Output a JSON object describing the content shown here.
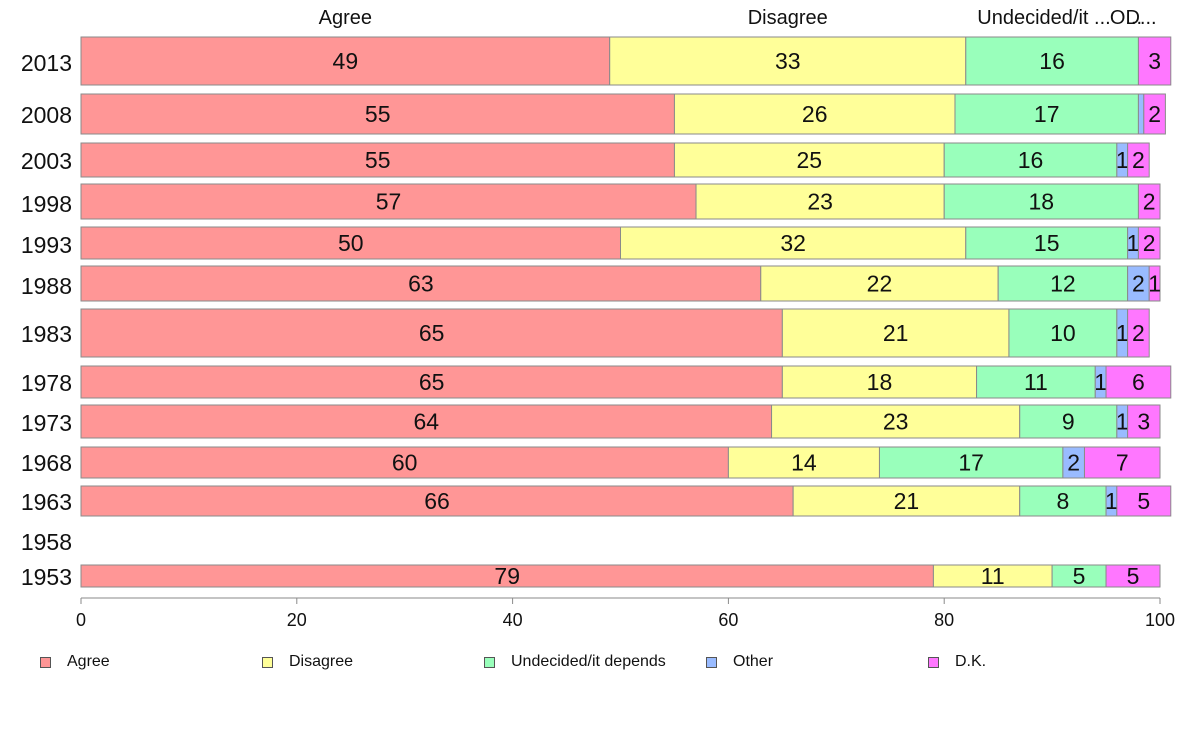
{
  "chart_data": {
    "type": "bar",
    "orientation": "horizontal",
    "stacked": true,
    "categories": [
      "2013",
      "2008",
      "2003",
      "1998",
      "1993",
      "1988",
      "1983",
      "1978",
      "1973",
      "1968",
      "1963",
      "1958",
      "1953"
    ],
    "series": [
      {
        "name": "Agree",
        "color": "#ff9696",
        "values": [
          49,
          55,
          55,
          57,
          50,
          63,
          65,
          65,
          64,
          60,
          66,
          null,
          79
        ],
        "labels": [
          "49",
          "55",
          "55",
          "57",
          "50",
          "63",
          "65",
          "65",
          "64",
          "60",
          "66",
          "",
          "79"
        ]
      },
      {
        "name": "Disagree",
        "color": "#ffff99",
        "values": [
          33,
          26,
          25,
          23,
          32,
          22,
          21,
          18,
          23,
          14,
          21,
          null,
          11
        ],
        "labels": [
          "33",
          "26",
          "25",
          "23",
          "32",
          "22",
          "21",
          "18",
          "23",
          "14",
          "21",
          "",
          "11"
        ]
      },
      {
        "name": "Undecided/it depends",
        "color": "#99ffbb",
        "values": [
          16,
          17,
          16,
          18,
          15,
          12,
          10,
          11,
          9,
          17,
          8,
          null,
          5
        ],
        "labels": [
          "16",
          "17",
          "16",
          "18",
          "15",
          "12",
          "10",
          "11",
          "9",
          "17",
          "8",
          "",
          "5"
        ]
      },
      {
        "name": "Other",
        "color": "#99bbff",
        "values": [
          0,
          0.5,
          1,
          0,
          1,
          2,
          1,
          1,
          1,
          2,
          1,
          null,
          0
        ],
        "labels": [
          "",
          "",
          "1",
          "",
          "1",
          "2",
          "1",
          "1",
          "1",
          "2",
          "1",
          "",
          ""
        ]
      },
      {
        "name": "D.K.",
        "color": "#ff77ff",
        "values": [
          3,
          2,
          2,
          2,
          2,
          1,
          2,
          6,
          3,
          7,
          5,
          null,
          5
        ],
        "labels": [
          "3",
          "2",
          "2",
          "2",
          "2",
          "1",
          "2",
          "6",
          "3",
          "7",
          "5",
          "",
          "5"
        ]
      }
    ],
    "top_labels": [
      "Agree",
      "Disagree",
      "Undecided/it ...",
      "O...",
      "D..."
    ],
    "xlim": [
      0,
      100
    ],
    "xticks": [
      "0",
      "20",
      "40",
      "60",
      "80",
      "100"
    ],
    "legend_position": "bottom",
    "grid": false
  }
}
